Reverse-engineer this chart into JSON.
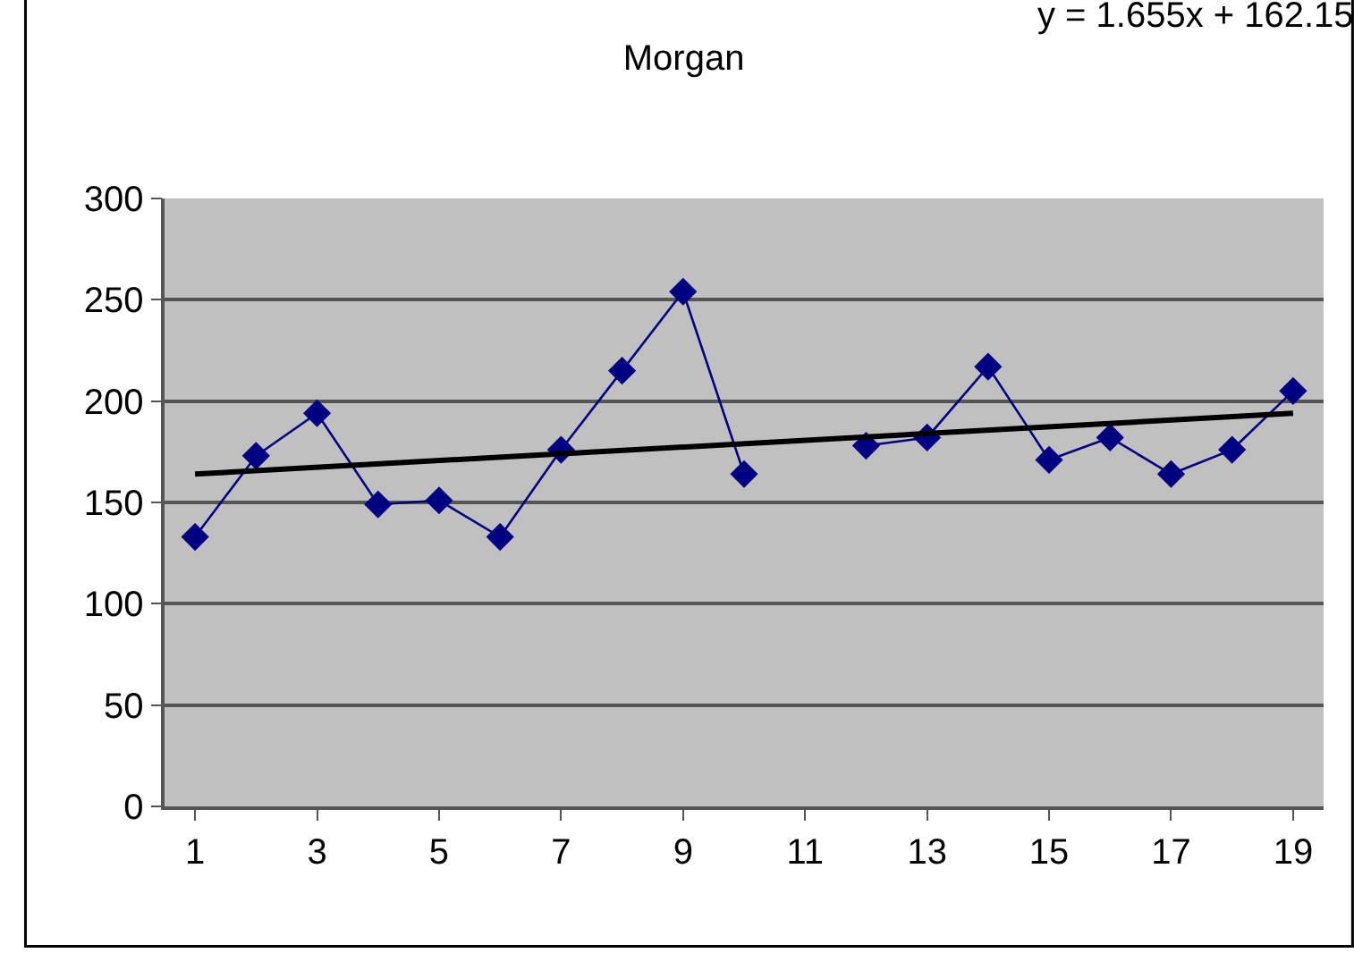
{
  "chart_data": {
    "type": "line",
    "title": "Morgan",
    "annotations": [
      "y = 1.655x + 162.15"
    ],
    "x": [
      1,
      2,
      3,
      4,
      5,
      6,
      7,
      8,
      9,
      10,
      11,
      12,
      13,
      14,
      15,
      16,
      17,
      18,
      19
    ],
    "series": [
      {
        "color": "#000080",
        "marker": "diamond",
        "values": [
          133,
          173,
          194,
          149,
          151,
          133,
          176,
          215,
          254,
          164,
          null,
          178,
          182,
          217,
          171,
          182,
          164,
          176,
          205
        ]
      },
      {
        "color": "#000000",
        "marker": "none",
        "x": [
          1,
          19
        ],
        "values": [
          164,
          194
        ]
      }
    ],
    "xlim": [
      0.5,
      19.5
    ],
    "xticks": [
      1,
      3,
      5,
      7,
      9,
      11,
      13,
      15,
      17,
      19
    ],
    "ylim": [
      0,
      300
    ],
    "yticks": [
      0,
      50,
      100,
      150,
      200,
      250,
      300
    ],
    "grid": "y"
  }
}
